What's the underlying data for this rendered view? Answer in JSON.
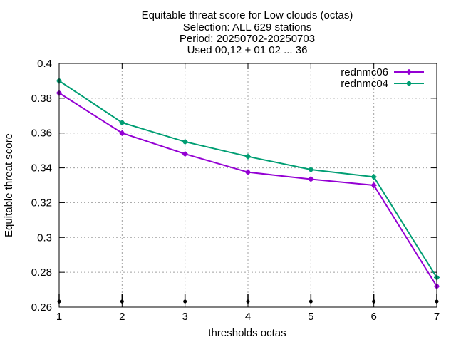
{
  "chart_data": {
    "type": "line",
    "title_lines": [
      "Equitable threat score  for Low clouds (octas)",
      "Selection: ALL    629 stations",
      "Period: 20250702-20250703",
      "Used 00,12 + 01 02 ... 36"
    ],
    "xlabel": "thresholds octas",
    "ylabel": "Equitable threat score",
    "x": [
      1,
      2,
      3,
      4,
      5,
      6,
      7
    ],
    "xlim": [
      1,
      7
    ],
    "ylim": [
      0.26,
      0.4
    ],
    "xticks": [
      "1",
      "2",
      "3",
      "4",
      "5",
      "6",
      "7"
    ],
    "yticks": [
      "0.26",
      "0.28",
      "0.3",
      "0.32",
      "0.34",
      "0.36",
      "0.38",
      "0.4"
    ],
    "grid": true,
    "legend_position": "top-right",
    "series": [
      {
        "name": "rednmc06",
        "color": "#9400d3",
        "values": [
          0.383,
          0.36,
          0.348,
          0.3375,
          0.3335,
          0.33,
          0.272
        ]
      },
      {
        "name": "rednmc04",
        "color": "#009e73",
        "values": [
          0.39,
          0.366,
          0.355,
          0.3465,
          0.339,
          0.3348,
          0.277
        ]
      }
    ]
  }
}
